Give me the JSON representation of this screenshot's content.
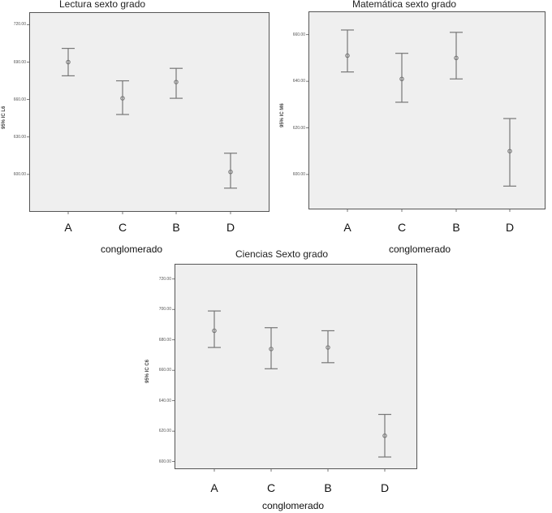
{
  "chart_data": [
    {
      "type": "errorbar",
      "title": "Lectura sexto grado",
      "ylabel": "95% IC L6",
      "xlabel": "conglomerado",
      "ylim": [
        570,
        730
      ],
      "yticks": [
        "720.00",
        "690.00",
        "660.00",
        "630.00",
        "600.00"
      ],
      "ytick_values": [
        720,
        690,
        660,
        630,
        600
      ],
      "categories": [
        "A",
        "C",
        "B",
        "D"
      ],
      "mean": [
        690,
        661,
        674,
        602
      ],
      "lower": [
        679,
        648,
        661,
        589
      ],
      "upper": [
        701,
        675,
        685,
        617
      ]
    },
    {
      "type": "errorbar",
      "title": "Matemática sexto grado",
      "ylabel": "95% IC M6",
      "xlabel": "conglomerado",
      "ylim": [
        585,
        670
      ],
      "yticks": [
        "660.00",
        "640.00",
        "620.00",
        "600.00"
      ],
      "ytick_values": [
        660,
        640,
        620,
        600
      ],
      "categories": [
        "A",
        "C",
        "B",
        "D"
      ],
      "mean": [
        651,
        641,
        650,
        610
      ],
      "lower": [
        644,
        631,
        641,
        595
      ],
      "upper": [
        662,
        652,
        661,
        624
      ]
    },
    {
      "type": "errorbar",
      "title": "Ciencias Sexto grado",
      "ylabel": "95% IC C6",
      "xlabel": "conglomerado",
      "ylim": [
        595,
        730
      ],
      "yticks": [
        "720.00",
        "700.00",
        "680.00",
        "660.00",
        "640.00",
        "620.00",
        "600.00"
      ],
      "ytick_values": [
        720,
        700,
        680,
        660,
        640,
        620,
        600
      ],
      "categories": [
        "A",
        "C",
        "B",
        "D"
      ],
      "mean": [
        686,
        674,
        675,
        617
      ],
      "lower": [
        675,
        661,
        665,
        603
      ],
      "upper": [
        699,
        688,
        686,
        631
      ]
    }
  ],
  "colors": {
    "background": "#efefef",
    "axis": "#555555",
    "mark": "#777777"
  }
}
